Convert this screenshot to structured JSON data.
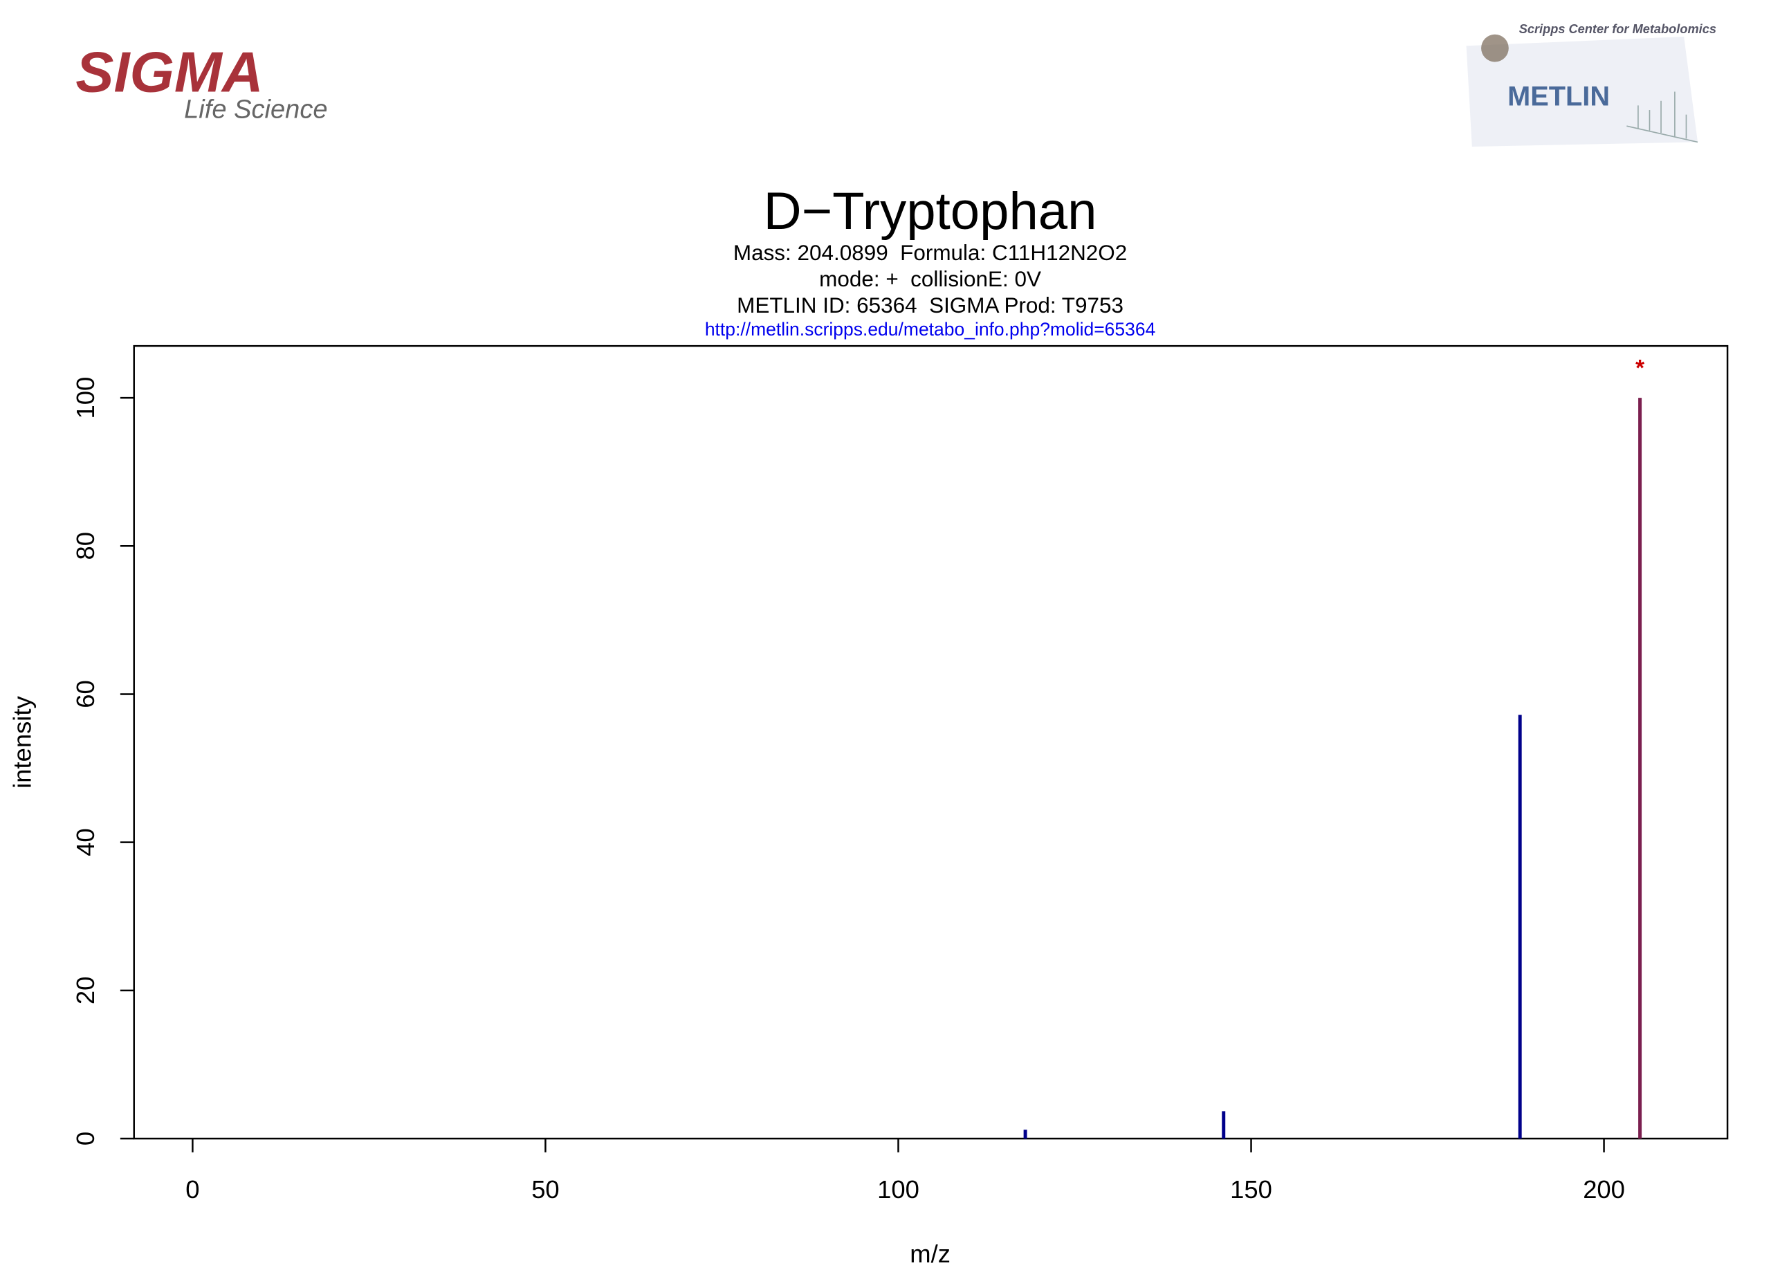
{
  "logos": {
    "left": {
      "name": "SIGMA",
      "tagline": "Life Science"
    },
    "right": {
      "caption": "Scripps Center for Metabolomics",
      "name": "METLIN"
    }
  },
  "chart_data": {
    "type": "stem",
    "title": "D−Tryptophan",
    "subtitle": [
      "Mass: 204.0899  Formula: C11H12N2O2",
      "mode: +  collisionE: 0V",
      "METLIN ID: 65364  SIGMA Prod: T9753"
    ],
    "link": "http://metlin.scripps.edu/metabo_info.php?molid=65364",
    "x_label": "m/z",
    "y_label": "intensity",
    "x": [
      118.0,
      146.1,
      188.1,
      205.1
    ],
    "values": [
      1.2,
      3.7,
      57.2,
      100
    ],
    "colors": [
      "#00008b",
      "#00008b",
      "#00008b",
      "#7b1f4f"
    ],
    "annotations": [
      {
        "text": "*",
        "x": 205.1,
        "color": "#cc0000"
      }
    ],
    "xlim": [
      -8.3,
      217.5
    ],
    "xticks": [
      0,
      50,
      100,
      150,
      200
    ],
    "ylim": [
      0,
      107
    ],
    "yticks": [
      0,
      20,
      40,
      60,
      80,
      100
    ]
  }
}
